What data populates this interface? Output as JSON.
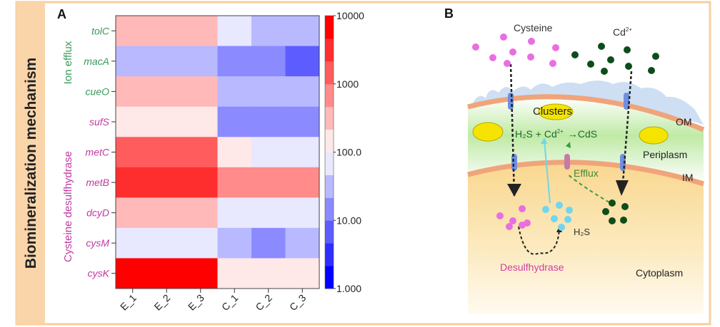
{
  "side_label": "Biomineralization mechanism",
  "panel_a": {
    "letter": "A",
    "group_labels": [
      {
        "text": "Ion efflux",
        "color": "#3a9a5a"
      },
      {
        "text": "Cysteine desulfhydrase",
        "color": "#c03aa0"
      }
    ]
  },
  "chart_data": {
    "type": "heatmap",
    "columns": [
      "E_1",
      "E_2",
      "E_3",
      "C_1",
      "C_2",
      "C_3"
    ],
    "rows": [
      "tolC",
      "macA",
      "cueO",
      "sufS",
      "metC",
      "metB",
      "dcyD",
      "cysM",
      "cysK"
    ],
    "row_colors": [
      "#3a9a5a",
      "#3a9a5a",
      "#3a9a5a",
      "#c03aa0",
      "#c03aa0",
      "#c03aa0",
      "#c03aa0",
      "#c03aa0",
      "#c03aa0"
    ],
    "values": [
      [
        300,
        300,
        300,
        80,
        30,
        30
      ],
      [
        30,
        30,
        30,
        12,
        12,
        5
      ],
      [
        300,
        300,
        300,
        30,
        30,
        30
      ],
      [
        150,
        150,
        150,
        15,
        15,
        15
      ],
      [
        2000,
        2000,
        2000,
        150,
        80,
        80
      ],
      [
        4000,
        4000,
        4000,
        800,
        800,
        800
      ],
      [
        300,
        300,
        300,
        80,
        80,
        80
      ],
      [
        80,
        80,
        80,
        30,
        15,
        30
      ],
      [
        10000,
        10000,
        10000,
        150,
        150,
        150
      ]
    ],
    "colorbar": {
      "scale": "log",
      "range": [
        1,
        10000
      ],
      "ticks": [
        "1.000",
        "10.00",
        "100.0",
        "1000",
        "10000"
      ],
      "colors": {
        "low": "#0000ff",
        "mid": "#ffffff",
        "high": "#ff0000"
      }
    }
  },
  "panel_b": {
    "letter": "B",
    "labels": {
      "cysteine": "Cysteine",
      "cd": "Cd",
      "cd_charge": "2+",
      "clusters": "Clusters",
      "om": "OM",
      "periplasm": "Periplasm",
      "im": "IM",
      "reaction_h2s": "H₂S + Cd",
      "reaction_charge": "2+",
      "reaction_product": "→CdS",
      "efflux": "Efflux",
      "h2s": "H₂S",
      "desulfhydrase": "Desulfhydrase",
      "cytoplasm": "Cytoplasm"
    },
    "colors": {
      "cysteine": "#e86fe0",
      "cadmium": "#0d4d1a",
      "h2s": "#6fd6f0",
      "cds": "#f5e400",
      "membrane": "#f0a47a"
    }
  }
}
